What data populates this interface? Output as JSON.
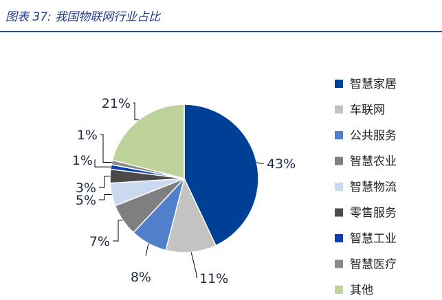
{
  "figure": {
    "title": "图表 37:  我国物联网行业占比"
  },
  "chart_data": {
    "type": "pie",
    "title": "",
    "legend_position": "right",
    "slices": [
      {
        "label": "智慧家居",
        "value": 43,
        "value_label": "43%",
        "color": "#003f96"
      },
      {
        "label": "车联网",
        "value": 11,
        "value_label": "11%",
        "color": "#c3c3c3"
      },
      {
        "label": "公共服务",
        "value": 8,
        "value_label": "8%",
        "color": "#4f80c9"
      },
      {
        "label": "智慧农业",
        "value": 7,
        "value_label": "7%",
        "color": "#7f7f7f"
      },
      {
        "label": "智慧物流",
        "value": 5,
        "value_label": "5%",
        "color": "#c9d9ef"
      },
      {
        "label": "零售服务",
        "value": 3,
        "value_label": "3%",
        "color": "#4a4a4a"
      },
      {
        "label": "智慧工业",
        "value": 1,
        "value_label": "1%",
        "color": "#0a3fb0"
      },
      {
        "label": "智慧医疗",
        "value": 1,
        "value_label": "1%",
        "color": "#8a8a8a"
      },
      {
        "label": "其他",
        "value": 21,
        "value_label": "21%",
        "color": "#bdd39b"
      }
    ]
  }
}
